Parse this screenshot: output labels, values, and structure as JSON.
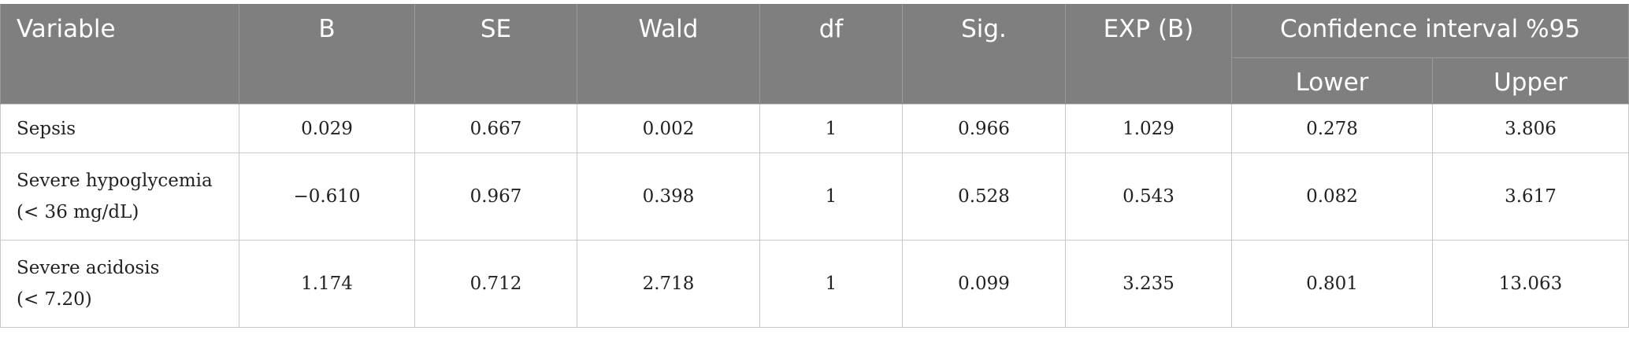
{
  "table": {
    "header": {
      "columns": [
        "Variable",
        "B",
        "SE",
        "Wald",
        "df",
        "Sig.",
        "EXP (B)"
      ],
      "group": "Confidence interval %95",
      "subcolumns": [
        "Lower",
        "Upper"
      ]
    },
    "rows": [
      [
        [
          "Sepsis"
        ],
        "0.029",
        "0.667",
        "0.002",
        "1",
        "0.966",
        "1.029",
        "0.278",
        "3.806"
      ],
      [
        [
          "Severe hypoglycemia",
          "(< 36 mg/dL)"
        ],
        "−0.610",
        "0.967",
        "0.398",
        "1",
        "0.528",
        "0.543",
        "0.082",
        "3.617"
      ],
      [
        [
          "Severe acidosis",
          "(< 7.20)"
        ],
        "1.174",
        "0.712",
        "2.718",
        "1",
        "0.099",
        "3.235",
        "0.801",
        "13.063"
      ]
    ]
  }
}
